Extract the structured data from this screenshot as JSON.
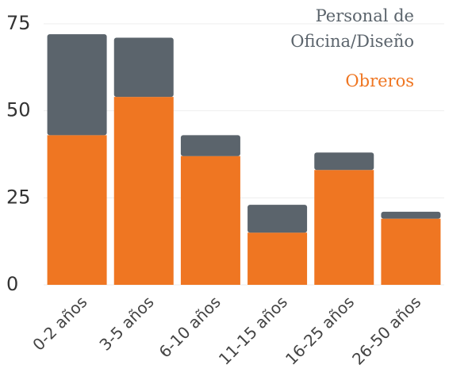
{
  "chart_data": {
    "type": "stacked_bar",
    "categories": [
      "0-2 años",
      "3-5 años",
      "6-10 años",
      "11-15 años",
      "16-25 años",
      "26-50 años"
    ],
    "series": [
      {
        "name": "Obreros",
        "color": "#ef7622",
        "values": [
          43,
          54,
          37,
          15,
          33,
          19
        ]
      },
      {
        "name": "Personal de Oficina/Diseño",
        "color": "#5b646c",
        "values": [
          29,
          17,
          6,
          8,
          5,
          2
        ]
      }
    ],
    "ylim": [
      0,
      75
    ],
    "yticks": [
      0,
      25,
      50,
      75
    ],
    "grid": true,
    "legend": "top-right"
  }
}
